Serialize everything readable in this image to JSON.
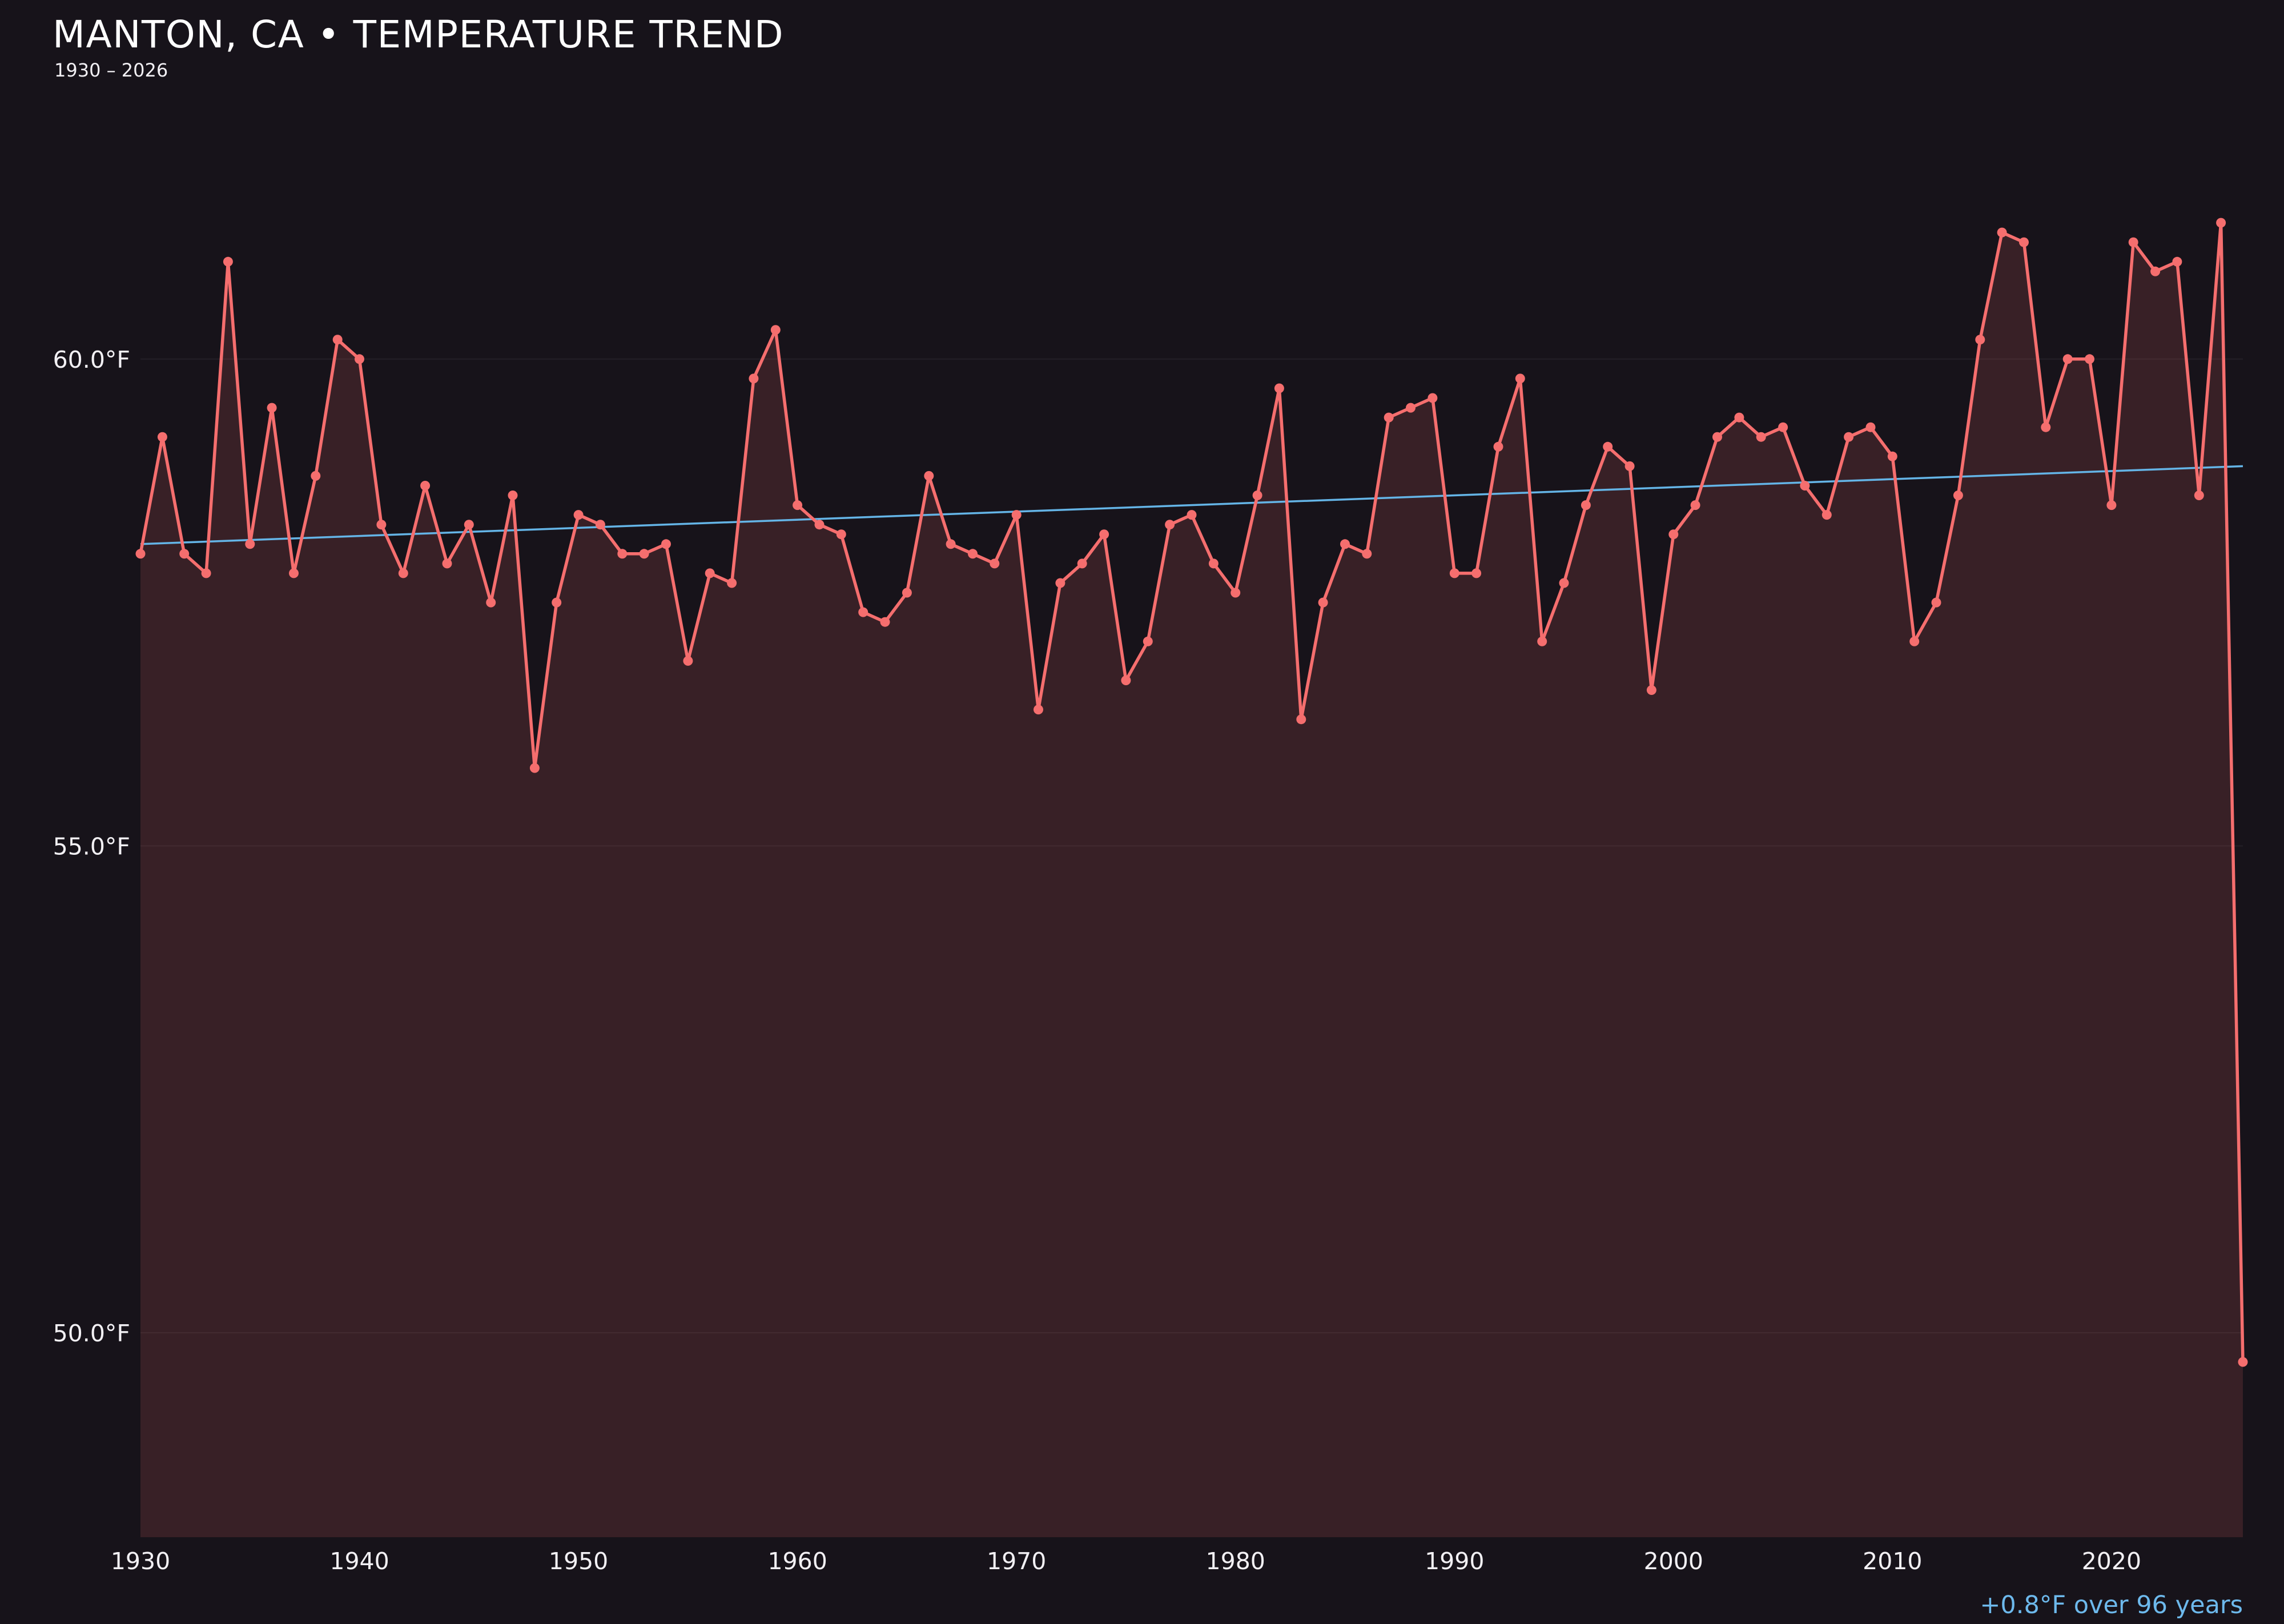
{
  "header": {
    "title": "MANTON, CA • TEMPERATURE TREND",
    "subtitle": "1930 – 2026"
  },
  "annotation": "+0.8°F over 96 years",
  "colors": {
    "background": "#17131a",
    "text": "#ffffff",
    "axis_text": "#f2f0f4",
    "grid": "rgba(255,255,255,0.06)",
    "line": "#f56e6e",
    "area_fill": "rgba(245,110,110,0.15)",
    "trend": "#64b4e6",
    "annotation_text": "#6db9ec"
  },
  "chart_data": {
    "type": "line",
    "title": "MANTON, CA • TEMPERATURE TREND",
    "subtitle": "1930 – 2026",
    "xlabel": "",
    "ylabel": "",
    "grid": true,
    "legend": false,
    "xlim": [
      1930,
      2026
    ],
    "ylim": [
      47.9,
      62.55
    ],
    "xticks": [
      1930,
      1940,
      1950,
      1960,
      1970,
      1980,
      1990,
      2000,
      2010,
      2020
    ],
    "yticks": [
      60,
      55,
      50
    ],
    "ytick_labels": [
      "60.0°F",
      "55.0°F",
      "50.0°F"
    ],
    "x": [
      1930,
      1931,
      1932,
      1933,
      1934,
      1935,
      1936,
      1937,
      1938,
      1939,
      1940,
      1941,
      1942,
      1943,
      1944,
      1945,
      1946,
      1947,
      1948,
      1949,
      1950,
      1951,
      1952,
      1953,
      1954,
      1955,
      1956,
      1957,
      1958,
      1959,
      1960,
      1961,
      1962,
      1963,
      1964,
      1965,
      1966,
      1967,
      1968,
      1969,
      1970,
      1971,
      1972,
      1973,
      1974,
      1975,
      1976,
      1977,
      1978,
      1979,
      1980,
      1981,
      1982,
      1983,
      1984,
      1985,
      1986,
      1987,
      1988,
      1989,
      1990,
      1991,
      1992,
      1993,
      1994,
      1995,
      1996,
      1997,
      1998,
      1999,
      2000,
      2001,
      2002,
      2003,
      2004,
      2005,
      2006,
      2007,
      2008,
      2009,
      2010,
      2011,
      2012,
      2013,
      2014,
      2015,
      2016,
      2017,
      2018,
      2019,
      2020,
      2021,
      2022,
      2023,
      2024,
      2025,
      2026
    ],
    "values": [
      58.0,
      59.2,
      58.0,
      57.8,
      61.0,
      58.1,
      59.5,
      57.8,
      58.8,
      60.2,
      60.0,
      58.3,
      57.8,
      58.7,
      57.9,
      58.3,
      57.5,
      58.6,
      55.8,
      57.5,
      58.4,
      58.3,
      58.0,
      58.0,
      58.1,
      56.9,
      57.8,
      57.7,
      59.8,
      60.3,
      58.5,
      58.3,
      58.2,
      57.4,
      57.3,
      57.6,
      58.8,
      58.1,
      58.0,
      57.9,
      58.4,
      56.4,
      57.7,
      57.9,
      58.2,
      56.7,
      57.1,
      58.3,
      58.4,
      57.9,
      57.6,
      58.6,
      59.7,
      56.3,
      57.5,
      58.1,
      58.0,
      59.4,
      59.5,
      59.6,
      57.8,
      57.8,
      59.1,
      59.8,
      57.1,
      57.7,
      58.5,
      59.1,
      58.9,
      56.6,
      58.2,
      58.5,
      59.2,
      59.4,
      59.2,
      59.3,
      58.7,
      58.4,
      59.2,
      59.3,
      59.0,
      57.1,
      57.5,
      58.6,
      60.2,
      61.3,
      61.2,
      59.3,
      60.0,
      60.0,
      58.5,
      61.2,
      60.9,
      61.0,
      58.6,
      61.4,
      49.7
    ],
    "trend": {
      "start_year": 1930,
      "end_year": 2026,
      "start_value": 58.1,
      "end_value": 58.9,
      "change_label": "+0.8°F over 96 years"
    }
  }
}
